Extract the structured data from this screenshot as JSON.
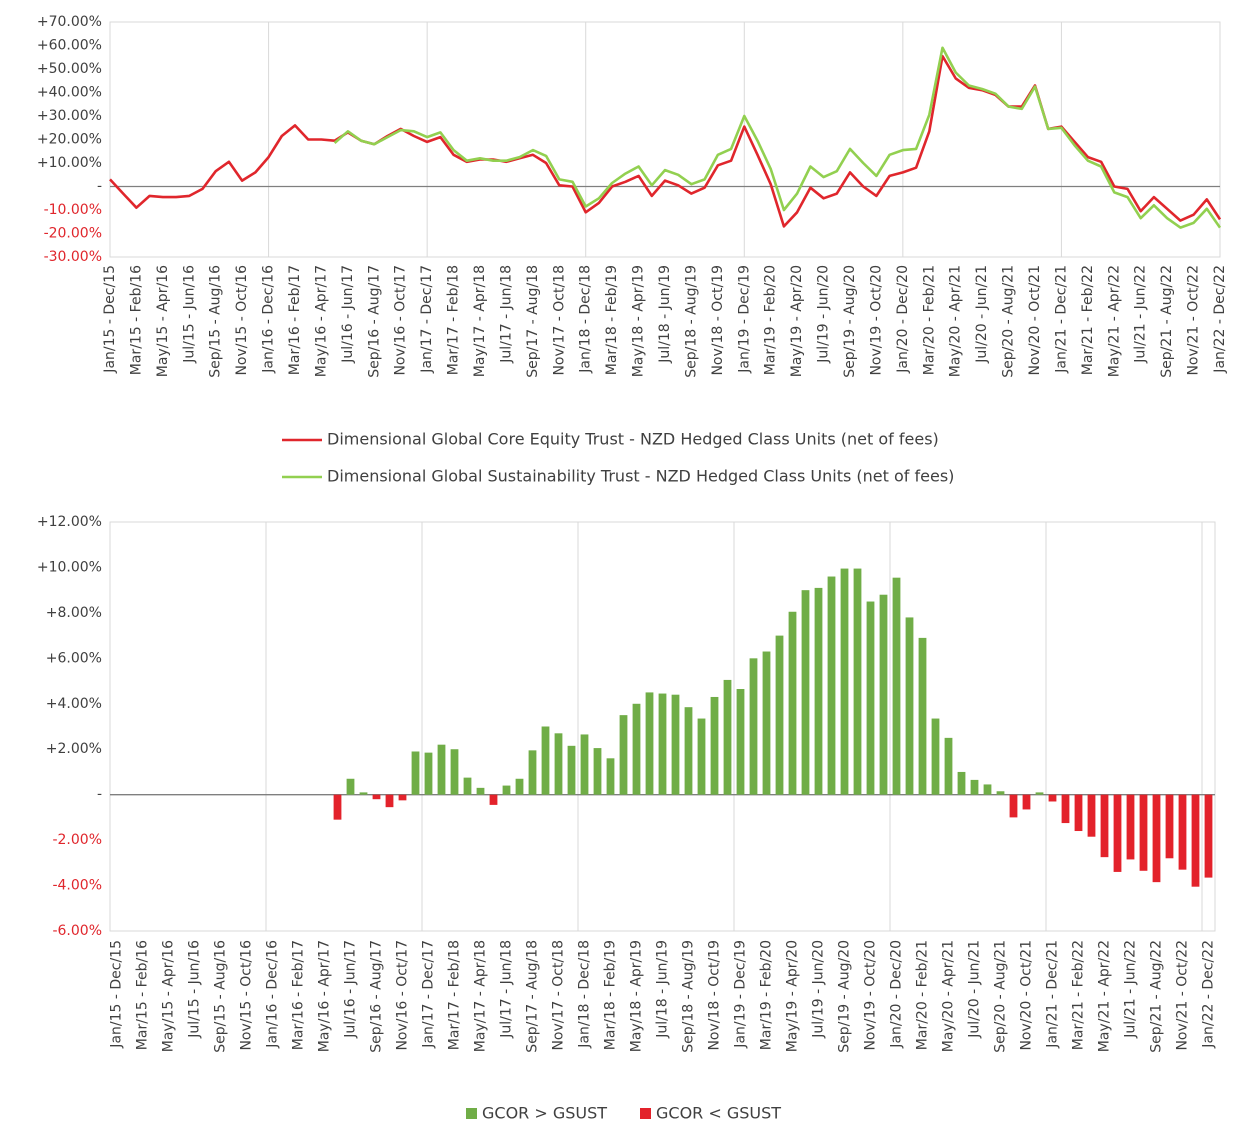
{
  "chart_data": [
    {
      "type": "line",
      "categories": [
        "Jan/15 - Dec/15",
        null,
        "Mar/15 - Feb/16",
        null,
        "May/15 - Apr/16",
        null,
        "Jul/15 - Jun/16",
        null,
        "Sep/15 - Aug/16",
        null,
        "Nov/15 - Oct/16",
        null,
        "Jan/16 - Dec/16",
        null,
        "Mar/16 - Feb/17",
        null,
        "May/16 - Apr/17",
        null,
        "Jul/16 - Jun/17",
        null,
        "Sep/16 - Aug/17",
        null,
        "Nov/16 - Oct/17",
        null,
        "Jan/17 - Dec/17",
        null,
        "Mar/17 - Feb/18",
        null,
        "May/17 - Apr/18",
        null,
        "Jul/17 - Jun/18",
        null,
        "Sep/17 - Aug/18",
        null,
        "Nov/17 - Oct/18",
        null,
        "Jan/18 - Dec/18",
        null,
        "Mar/18 - Feb/19",
        null,
        "May/18 - Apr/19",
        null,
        "Jul/18 - Jun/19",
        null,
        "Sep/18 - Aug/19",
        null,
        "Nov/18 - Oct/19",
        null,
        "Jan/19 - Dec/19",
        null,
        "Mar/19 - Feb/20",
        null,
        "May/19 - Apr/20",
        null,
        "Jul/19 - Jun/20",
        null,
        "Sep/19 - Aug/20",
        null,
        "Nov/19 - Oct/20",
        null,
        "Jan/20 - Dec/20",
        null,
        "Mar/20 - Feb/21",
        null,
        "May/20 - Apr/21",
        null,
        "Jul/20 - Jun/21",
        null,
        "Sep/20 - Aug/21",
        null,
        "Nov/20 - Oct/21",
        null,
        "Jan/21 - Dec/21",
        null,
        "Mar/21 - Feb/22",
        null,
        "May/21 - Apr/22",
        null,
        "Jul/21 - Jun/22",
        null,
        "Sep/21 - Aug/22",
        null,
        "Nov/21 - Oct/22",
        null,
        "Jan/22 - Dec/22"
      ],
      "series": [
        {
          "name": "Dimensional Global Core Equity Trust - NZD Hedged Class Units (net of fees)",
          "color": "#e0262c",
          "values": [
            3,
            -3,
            -9,
            -4,
            -4.5,
            -4.5,
            -4,
            -1,
            6.5,
            10.5,
            2.5,
            6,
            12.5,
            21.5,
            26,
            20,
            20,
            19.5,
            23,
            19.5,
            18,
            21.5,
            24.5,
            21.5,
            19,
            21,
            13.5,
            10.5,
            11.5,
            11.5,
            10.5,
            12,
            13.5,
            10,
            0.5,
            0,
            -11,
            -7,
            0,
            2,
            4.5,
            -4,
            2.5,
            0.5,
            -3,
            -0.5,
            9,
            11,
            25.5,
            13.5,
            1,
            -17,
            -11,
            -0.5,
            -5,
            -3,
            6,
            0,
            -4,
            4.5,
            6,
            8,
            23.5,
            55.5,
            46,
            42,
            41,
            39,
            34,
            34,
            43,
            24.5,
            25.5,
            19,
            12.5,
            10.5,
            0,
            -1,
            -10.5,
            -4.5,
            -9.5,
            -14.5,
            -12,
            -5.5,
            -14
          ]
        },
        {
          "name": "Dimensional Global Sustainability Trust - NZD Hedged Class Units (net of fees)",
          "color": "#92d050",
          "values": [
            null,
            null,
            null,
            null,
            null,
            null,
            null,
            null,
            null,
            null,
            null,
            null,
            null,
            null,
            null,
            null,
            null,
            18.5,
            23.5,
            19.5,
            18,
            21,
            24,
            23.5,
            21,
            23,
            15.5,
            11,
            12,
            11,
            11,
            12.5,
            15.5,
            13,
            3,
            2,
            -8.5,
            -5,
            1.5,
            5.5,
            8.5,
            0.5,
            7,
            5,
            1,
            3,
            13.5,
            16,
            30,
            19.5,
            7.5,
            -10,
            -3,
            8.5,
            4,
            6.5,
            16,
            10,
            4.5,
            13.5,
            15.5,
            16,
            30.5,
            59,
            48.5,
            43,
            41.5,
            39.5,
            34,
            33,
            42.5,
            24.5,
            25,
            17.5,
            11,
            8.5,
            -2.5,
            -4.5,
            -13.5,
            -8,
            -13.5,
            -17.5,
            -15.5,
            -9.5,
            -17.5
          ]
        }
      ],
      "ylim": [
        -30,
        70
      ],
      "yticks": [
        {
          "value": -30,
          "label": "-30.00%"
        },
        {
          "value": -20,
          "label": "-20.00%"
        },
        {
          "value": -10,
          "label": "-10.00%"
        },
        {
          "value": 0,
          "label": "-"
        },
        {
          "value": 10,
          "label": "+10.00%"
        },
        {
          "value": 20,
          "label": "+20.00%"
        },
        {
          "value": 30,
          "label": "+30.00%"
        },
        {
          "value": 40,
          "label": "+40.00%"
        },
        {
          "value": 50,
          "label": "+50.00%"
        },
        {
          "value": 60,
          "label": "+60.00%"
        },
        {
          "value": 70,
          "label": "+70.00%"
        }
      ],
      "legend": "bottom"
    },
    {
      "type": "bar",
      "categories": [
        "Jan/15 - Dec/15",
        null,
        "Mar/15 - Feb/16",
        null,
        "May/15 - Apr/16",
        null,
        "Jul/15 - Jun/16",
        null,
        "Sep/15 - Aug/16",
        null,
        "Nov/15 - Oct/16",
        null,
        "Jan/16 - Dec/16",
        null,
        "Mar/16 - Feb/17",
        null,
        "May/16 - Apr/17",
        null,
        "Jul/16 - Jun/17",
        null,
        "Sep/16 - Aug/17",
        null,
        "Nov/16 - Oct/17",
        null,
        "Jan/17 - Dec/17",
        null,
        "Mar/17 - Feb/18",
        null,
        "May/17 - Apr/18",
        null,
        "Jul/17 - Jun/18",
        null,
        "Sep/17 - Aug/18",
        null,
        "Nov/17 - Oct/18",
        null,
        "Jan/18 - Dec/18",
        null,
        "Mar/18 - Feb/19",
        null,
        "May/18 - Apr/19",
        null,
        "Jul/18 - Jun/19",
        null,
        "Sep/18 - Aug/19",
        null,
        "Nov/18 - Oct/19",
        null,
        "Jan/19 - Dec/19",
        null,
        "Mar/19 - Feb/20",
        null,
        "May/19 - Apr/20",
        null,
        "Jul/19 - Jun/20",
        null,
        "Sep/19 - Aug/20",
        null,
        "Nov/19 - Oct/20",
        null,
        "Jan/20 - Dec/20",
        null,
        "Mar/20 - Feb/21",
        null,
        "May/20 - Apr/21",
        null,
        "Jul/20 - Jun/21",
        null,
        "Sep/20 - Aug/21",
        null,
        "Nov/20 - Oct/21",
        null,
        "Jan/21 - Dec/21",
        null,
        "Mar/21 - Feb/22",
        null,
        "May/21 - Apr/22",
        null,
        "Jul/21 - Jun/22",
        null,
        "Sep/21 - Aug/22",
        null,
        "Nov/21 - Oct/22",
        null,
        "Jan/22 - Dec/22"
      ],
      "series": [
        {
          "name": "GCOR > GSUST",
          "color": "#70ad47",
          "values": [
            null,
            null,
            null,
            null,
            null,
            null,
            null,
            null,
            null,
            null,
            null,
            null,
            null,
            null,
            null,
            null,
            null,
            null,
            0.7,
            0.1,
            null,
            null,
            null,
            1.9,
            1.85,
            2.2,
            2.0,
            0.75,
            0.3,
            null,
            0.4,
            0.7,
            1.95,
            3.0,
            2.7,
            2.15,
            2.65,
            2.05,
            1.6,
            3.5,
            4.0,
            4.5,
            4.45,
            4.4,
            3.85,
            3.35,
            4.3,
            5.05,
            4.65,
            6.0,
            6.3,
            7.0,
            8.05,
            9.0,
            9.1,
            9.6,
            9.95,
            9.95,
            8.5,
            8.8,
            9.55,
            7.8,
            6.9,
            3.35,
            2.5,
            1.0,
            0.65,
            0.45,
            0.15,
            null,
            null,
            0.1,
            null,
            null,
            null,
            null,
            null,
            null,
            null,
            null,
            null,
            null,
            null,
            null,
            null
          ]
        },
        {
          "name": "GCOR < GSUST",
          "color": "#e3222b",
          "values": [
            null,
            null,
            null,
            null,
            null,
            null,
            null,
            null,
            null,
            null,
            null,
            null,
            null,
            null,
            null,
            null,
            null,
            -1.1,
            null,
            null,
            -0.2,
            -0.55,
            -0.25,
            null,
            null,
            null,
            null,
            null,
            null,
            -0.45,
            null,
            null,
            null,
            null,
            null,
            null,
            null,
            null,
            null,
            null,
            null,
            null,
            null,
            null,
            null,
            null,
            null,
            null,
            null,
            null,
            null,
            null,
            null,
            null,
            null,
            null,
            null,
            null,
            null,
            null,
            null,
            null,
            null,
            null,
            null,
            null,
            null,
            null,
            null,
            -1.0,
            -0.65,
            null,
            -0.3,
            -1.25,
            -1.6,
            -1.85,
            -2.75,
            -3.4,
            -2.85,
            -3.35,
            -3.85,
            -2.8,
            -3.3,
            -4.05,
            -3.65
          ]
        }
      ],
      "ylim": [
        -6,
        12
      ],
      "yticks": [
        {
          "value": -6,
          "label": "-6.00%"
        },
        {
          "value": -4,
          "label": "-4.00%"
        },
        {
          "value": -2,
          "label": "-2.00%"
        },
        {
          "value": 0,
          "label": "-"
        },
        {
          "value": 2,
          "label": "+2.00%"
        },
        {
          "value": 4,
          "label": "+4.00%"
        },
        {
          "value": 6,
          "label": "+6.00%"
        },
        {
          "value": 8,
          "label": "+8.00%"
        },
        {
          "value": 10,
          "label": "+10.00%"
        },
        {
          "value": 12,
          "label": "+12.00%"
        }
      ],
      "legend": "bottom"
    }
  ]
}
